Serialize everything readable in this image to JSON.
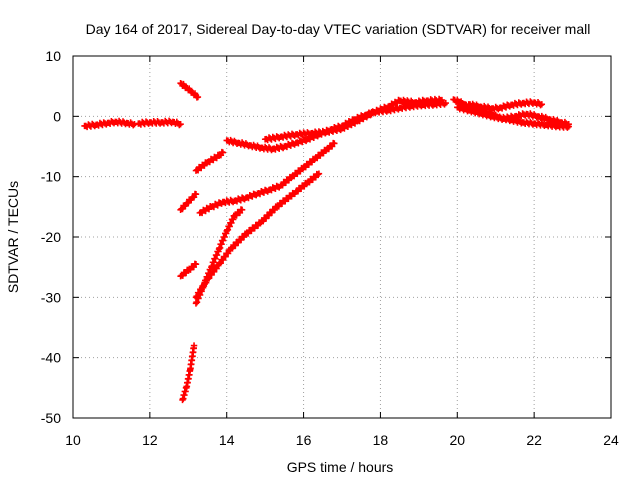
{
  "chart_data": {
    "type": "scatter",
    "title": "Day 164 of 2017, Sidereal Day-to-day VTEC variation (SDTVAR) for receiver mall",
    "xlabel": "GPS time / hours",
    "ylabel": "SDTVAR / TECUs",
    "xlim": [
      10,
      24
    ],
    "ylim": [
      -50,
      10
    ],
    "xticks": [
      "10",
      "12",
      "14",
      "16",
      "18",
      "20",
      "22",
      "24"
    ],
    "yticks": [
      "10",
      "0",
      "-10",
      "-20",
      "-30",
      "-40",
      "-50"
    ],
    "grid": true,
    "legend": "none",
    "series_color": "#ff0000",
    "marker": "plus",
    "series": [
      {
        "values": [
          [
            10.3,
            -1.6
          ],
          [
            10.6,
            -1.4
          ],
          [
            10.9,
            -1.1
          ],
          [
            11.1,
            -0.9
          ],
          [
            11.4,
            -1.1
          ],
          [
            11.6,
            -1.3
          ]
        ]
      },
      {
        "values": [
          [
            11.7,
            -1.2
          ],
          [
            12.0,
            -1.0
          ],
          [
            12.3,
            -1.0
          ],
          [
            12.6,
            -0.9
          ],
          [
            12.8,
            -1.3
          ]
        ]
      },
      {
        "values": [
          [
            12.8,
            5.5
          ],
          [
            12.95,
            4.8
          ],
          [
            13.1,
            4.0
          ],
          [
            13.25,
            3.2
          ]
        ]
      },
      {
        "values": [
          [
            13.2,
            -9.0
          ],
          [
            13.5,
            -7.6
          ],
          [
            13.8,
            -6.5
          ],
          [
            13.9,
            -6.0
          ]
        ]
      },
      {
        "values": [
          [
            12.8,
            -15.5
          ],
          [
            12.95,
            -14.5
          ],
          [
            13.1,
            -13.5
          ],
          [
            13.2,
            -12.9
          ]
        ]
      },
      {
        "values": [
          [
            12.8,
            -26.5
          ],
          [
            13.0,
            -25.5
          ],
          [
            13.2,
            -24.5
          ]
        ]
      },
      {
        "values": [
          [
            12.85,
            -47
          ],
          [
            12.95,
            -45
          ],
          [
            13.05,
            -42
          ],
          [
            13.15,
            -38
          ]
        ]
      },
      {
        "values": [
          [
            13.2,
            -31
          ],
          [
            13.4,
            -28
          ],
          [
            13.6,
            -25
          ],
          [
            13.8,
            -22
          ],
          [
            14.0,
            -19
          ],
          [
            14.2,
            -16.5
          ],
          [
            14.4,
            -15.5
          ]
        ]
      },
      {
        "values": [
          [
            13.2,
            -30
          ],
          [
            13.5,
            -27
          ],
          [
            13.8,
            -24.5
          ],
          [
            14.1,
            -22
          ],
          [
            14.5,
            -19.5
          ],
          [
            14.9,
            -17.5
          ],
          [
            15.3,
            -15
          ],
          [
            15.8,
            -12.5
          ],
          [
            16.1,
            -11
          ],
          [
            16.4,
            -9.5
          ]
        ]
      },
      {
        "values": [
          [
            13.3,
            -16
          ],
          [
            13.6,
            -15
          ],
          [
            13.9,
            -14.2
          ],
          [
            14.2,
            -14
          ],
          [
            14.5,
            -13.5
          ],
          [
            14.8,
            -12.8
          ],
          [
            15.1,
            -12.2
          ],
          [
            15.4,
            -11.5
          ],
          [
            15.7,
            -10
          ],
          [
            16.0,
            -8.5
          ],
          [
            16.3,
            -7
          ],
          [
            16.6,
            -5.5
          ],
          [
            16.8,
            -4.5
          ]
        ]
      },
      {
        "values": [
          [
            14.0,
            -4.0
          ],
          [
            14.3,
            -4.4
          ],
          [
            14.6,
            -4.8
          ],
          [
            14.9,
            -5.2
          ],
          [
            15.2,
            -5.4
          ],
          [
            15.5,
            -5.0
          ],
          [
            15.8,
            -4.4
          ],
          [
            16.1,
            -3.8
          ],
          [
            16.4,
            -3.0
          ],
          [
            16.7,
            -2.2
          ],
          [
            17.0,
            -1.6
          ],
          [
            17.3,
            -0.6
          ],
          [
            17.6,
            0.2
          ],
          [
            17.9,
            0.8
          ],
          [
            18.2,
            1.0
          ],
          [
            18.5,
            1.4
          ],
          [
            18.8,
            1.7
          ],
          [
            19.1,
            1.9
          ],
          [
            19.4,
            2.0
          ],
          [
            19.7,
            2.2
          ]
        ]
      },
      {
        "values": [
          [
            15.0,
            -3.8
          ],
          [
            15.4,
            -3.4
          ],
          [
            15.8,
            -3.0
          ],
          [
            16.2,
            -2.8
          ],
          [
            16.6,
            -2.6
          ],
          [
            17.0,
            -2.0
          ],
          [
            17.4,
            -0.8
          ],
          [
            17.8,
            0.6
          ],
          [
            18.2,
            1.6
          ],
          [
            18.5,
            2.6
          ],
          [
            18.9,
            2.3
          ],
          [
            19.2,
            2.6
          ],
          [
            19.6,
            2.7
          ]
        ]
      },
      {
        "values": [
          [
            19.9,
            2.8
          ],
          [
            20.2,
            2.0
          ],
          [
            20.5,
            1.2
          ],
          [
            20.8,
            0.5
          ],
          [
            21.1,
            -0.2
          ],
          [
            21.4,
            -0.6
          ],
          [
            21.7,
            -1.0
          ],
          [
            22.0,
            -1.2
          ],
          [
            22.3,
            -1.4
          ],
          [
            22.6,
            -1.6
          ],
          [
            22.9,
            -1.7
          ]
        ]
      },
      {
        "values": [
          [
            20.0,
            1.5
          ],
          [
            20.3,
            1.0
          ],
          [
            20.6,
            0.5
          ],
          [
            20.9,
            0.0
          ],
          [
            21.2,
            -0.4
          ],
          [
            21.5,
            0.0
          ],
          [
            21.8,
            0.4
          ],
          [
            22.1,
            0.0
          ],
          [
            22.4,
            -0.5
          ],
          [
            22.7,
            -1.0
          ],
          [
            22.9,
            -1.3
          ]
        ]
      },
      {
        "values": [
          [
            20.3,
            2.0
          ],
          [
            20.6,
            1.6
          ],
          [
            20.9,
            1.3
          ],
          [
            21.1,
            1.4
          ],
          [
            21.4,
            1.9
          ],
          [
            21.7,
            2.2
          ],
          [
            22.0,
            2.3
          ],
          [
            22.2,
            2.0
          ]
        ]
      }
    ]
  }
}
